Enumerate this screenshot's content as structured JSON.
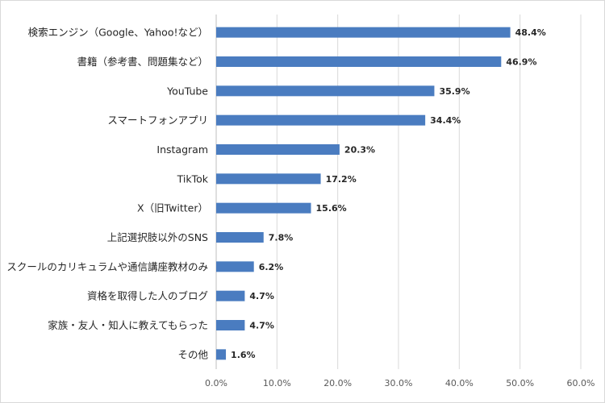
{
  "chart_data": {
    "type": "bar",
    "orientation": "horizontal",
    "categories": [
      "検索エンジン（Google、Yahoo!など）",
      "書籍（参考書、問題集など）",
      "YouTube",
      "スマートフォンアプリ",
      "Instagram",
      "TikTok",
      "X（旧Twitter）",
      "上記選択肢以外のSNS",
      "スクールのカリキュラムや通信講座教材のみ",
      "資格を取得した人のブログ",
      "家族・友人・知人に教えてもらった",
      "その他"
    ],
    "values": [
      48.4,
      46.9,
      35.9,
      34.4,
      20.3,
      17.2,
      15.6,
      7.8,
      6.2,
      4.7,
      4.7,
      1.6
    ],
    "value_labels": [
      "48.4%",
      "46.9%",
      "35.9%",
      "34.4%",
      "20.3%",
      "17.2%",
      "15.6%",
      "7.8%",
      "6.2%",
      "4.7%",
      "4.7%",
      "1.6%"
    ],
    "xticks": [
      "0.0%",
      "10.0%",
      "20.0%",
      "30.0%",
      "40.0%",
      "50.0%",
      "60.0%"
    ],
    "xlim": [
      0,
      60
    ],
    "grid": true,
    "bar_color": "#4a7cc0",
    "grid_color": "#d9d9d9"
  }
}
